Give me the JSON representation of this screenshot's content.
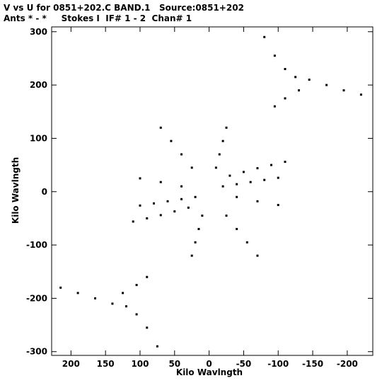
{
  "header": {
    "line1": "V vs U for 0851+202.C BAND.1   Source:0851+202",
    "line2": "Ants * - *     Stokes I  IF# 1 - 2  Chan# 1"
  },
  "chart_data": {
    "type": "scatter",
    "title": "V vs U for 0851+202.C BAND.1   Source:0851+202",
    "subtitle": "Ants * - *     Stokes I  IF# 1 - 2  Chan# 1",
    "xlabel": "Kilo Wavlngth",
    "ylabel": "Kilo Wavlngth",
    "xlim": [
      228,
      -237
    ],
    "ylim": [
      -307,
      309
    ],
    "x_reversed": true,
    "grid": false,
    "xticks": [
      200,
      150,
      100,
      50,
      0,
      -50,
      -100,
      -150,
      -200
    ],
    "xtick_labels": [
      "200",
      "150",
      "100",
      "50",
      "0",
      "-50",
      "-100",
      "-150",
      "-200"
    ],
    "yticks": [
      300,
      200,
      100,
      0,
      -100,
      -200,
      -300
    ],
    "ytick_labels": [
      "300",
      "200",
      "100",
      "0",
      "-100",
      "-200",
      "-300"
    ],
    "point_color": "#000000",
    "series": [
      {
        "points": [
          [
            -20,
            10
          ],
          [
            -40,
            14
          ],
          [
            -60,
            18
          ],
          [
            -80,
            22
          ],
          [
            -100,
            26
          ],
          [
            20,
            -10
          ],
          [
            40,
            -14
          ],
          [
            60,
            -18
          ],
          [
            80,
            -22
          ],
          [
            100,
            -26
          ],
          [
            -30,
            30
          ],
          [
            -50,
            37
          ],
          [
            -70,
            44
          ],
          [
            -90,
            50
          ],
          [
            -110,
            56
          ],
          [
            30,
            -30
          ],
          [
            50,
            -37
          ],
          [
            70,
            -44
          ],
          [
            90,
            -50
          ],
          [
            110,
            -56
          ],
          [
            -10,
            45
          ],
          [
            -15,
            70
          ],
          [
            -20,
            95
          ],
          [
            -25,
            120
          ],
          [
            10,
            -45
          ],
          [
            15,
            -70
          ],
          [
            20,
            -95
          ],
          [
            25,
            -120
          ],
          [
            25,
            45
          ],
          [
            40,
            70
          ],
          [
            55,
            95
          ],
          [
            70,
            120
          ],
          [
            -25,
            -45
          ],
          [
            -40,
            -70
          ],
          [
            -55,
            -95
          ],
          [
            -70,
            -120
          ],
          [
            40,
            10
          ],
          [
            70,
            18
          ],
          [
            100,
            25
          ],
          [
            -40,
            -10
          ],
          [
            -70,
            -18
          ],
          [
            -100,
            -25
          ],
          [
            -145,
            210
          ],
          [
            -170,
            200
          ],
          [
            -195,
            190
          ],
          [
            -220,
            182
          ],
          [
            -125,
            215
          ],
          [
            -110,
            230
          ],
          [
            -95,
            255
          ],
          [
            -80,
            290
          ],
          [
            -130,
            190
          ],
          [
            -110,
            175
          ],
          [
            -95,
            160
          ],
          [
            140,
            -210
          ],
          [
            165,
            -200
          ],
          [
            190,
            -190
          ],
          [
            215,
            -180
          ],
          [
            120,
            -215
          ],
          [
            105,
            -230
          ],
          [
            90,
            -255
          ],
          [
            75,
            -290
          ],
          [
            125,
            -190
          ],
          [
            105,
            -175
          ],
          [
            90,
            -160
          ]
        ]
      }
    ]
  }
}
